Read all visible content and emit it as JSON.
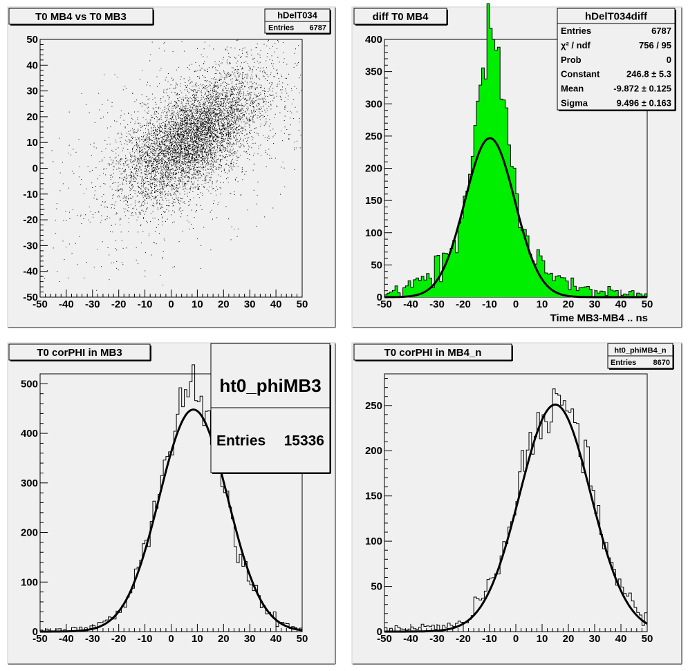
{
  "pads": [
    {
      "title": "T0 MB4 vs T0 MB3",
      "stats": {
        "name": "hDelT034",
        "rows": [
          {
            "label": "Entries",
            "value": "6787"
          }
        ]
      },
      "xlabel": ""
    },
    {
      "title": "diff T0 MB4",
      "stats": {
        "name": "hDelT034diff",
        "rows": [
          {
            "label": "Entries",
            "value": "6787"
          },
          {
            "label": "χ² / ndf",
            "value": "756 / 95"
          },
          {
            "label": "Prob",
            "value": "0"
          },
          {
            "label": "Constant",
            "value": "246.8 ± 5.3"
          },
          {
            "label": "Mean",
            "value": "-9.872 ± 0.125"
          },
          {
            "label": "Sigma",
            "value": "9.496 ± 0.163"
          }
        ]
      },
      "xlabel": "Time MB3-MB4  ..  ns"
    },
    {
      "title": "T0 corPHI in MB3",
      "stats": {
        "name": "ht0_phiMB3",
        "rows": [
          {
            "label": "Entries",
            "value": "15336"
          }
        ]
      },
      "xlabel": ""
    },
    {
      "title": "T0 corPHI in MB4_n",
      "stats": {
        "name": "ht0_phiMB4_n",
        "rows": [
          {
            "label": "Entries",
            "value": "8670"
          }
        ]
      },
      "xlabel": ""
    }
  ],
  "chart_data": [
    {
      "type": "scatter",
      "name": "hDelT034",
      "title": "T0 MB4 vs T0 MB3",
      "entries": 6787,
      "xlim": [
        -50,
        50
      ],
      "ylim": [
        -50,
        50
      ],
      "x_ticks": [
        -50,
        -40,
        -30,
        -20,
        -10,
        0,
        10,
        20,
        30,
        40,
        50
      ],
      "y_ticks": [
        -50,
        -40,
        -30,
        -20,
        -10,
        0,
        10,
        20,
        30,
        40,
        50
      ],
      "distribution": {
        "x_mean": 8,
        "y_mean": 12,
        "x_sigma": 13,
        "y_sigma": 12,
        "correlation": 0.6
      },
      "grid": false
    },
    {
      "type": "bar",
      "name": "hDelT034diff",
      "title": "diff T0 MB4",
      "xlabel": "Time MB3-MB4  ..  ns",
      "xlim": [
        -50,
        50
      ],
      "ylim": [
        0,
        400
      ],
      "x_ticks": [
        -50,
        -40,
        -30,
        -20,
        -10,
        0,
        10,
        20,
        30,
        40,
        50
      ],
      "y_ticks": [
        0,
        50,
        100,
        150,
        200,
        250,
        300,
        350,
        400
      ],
      "bin_width": 1,
      "fill_color": "#00ee00",
      "hist_peak": {
        "center": -9.5,
        "height": 385,
        "core_sigma": 6.0,
        "tail_sigma": 16,
        "tail_fraction": 0.22
      },
      "fit": {
        "function": "gaus",
        "constant": 246.8,
        "mean": -9.872,
        "sigma": 9.496
      },
      "entries": 6787,
      "grid": false
    },
    {
      "type": "bar",
      "name": "ht0_phiMB3",
      "title": "T0 corPHI in MB3",
      "xlim": [
        -50,
        50
      ],
      "ylim": [
        0,
        520
      ],
      "x_ticks": [
        -50,
        -40,
        -30,
        -20,
        -10,
        0,
        10,
        20,
        30,
        40,
        50
      ],
      "y_ticks": [
        0,
        100,
        200,
        300,
        400,
        500
      ],
      "bin_width": 1,
      "fill_color": "none",
      "hist_peak": {
        "center": 8,
        "height": 470,
        "sigma": 12.5,
        "baseline": 4
      },
      "fit": {
        "function": "gaus",
        "constant": 448,
        "mean": 8.5,
        "sigma": 13
      },
      "entries": 15336,
      "grid": false
    },
    {
      "type": "bar",
      "name": "ht0_phiMB4_n",
      "title": "T0 corPHI in MB4_n",
      "xlim": [
        -50,
        50
      ],
      "ylim": [
        0,
        285
      ],
      "x_ticks": [
        -50,
        -40,
        -30,
        -20,
        -10,
        0,
        10,
        20,
        30,
        40,
        50
      ],
      "y_ticks": [
        0,
        50,
        100,
        150,
        200,
        250
      ],
      "bin_width": 1,
      "fill_color": "none",
      "hist_peak": {
        "center": 15,
        "height": 258,
        "sigma": 13.5,
        "baseline": 4
      },
      "fit": {
        "function": "gaus",
        "constant": 251,
        "mean": 15,
        "sigma": 13.5
      },
      "entries": 8670,
      "grid": false
    }
  ]
}
